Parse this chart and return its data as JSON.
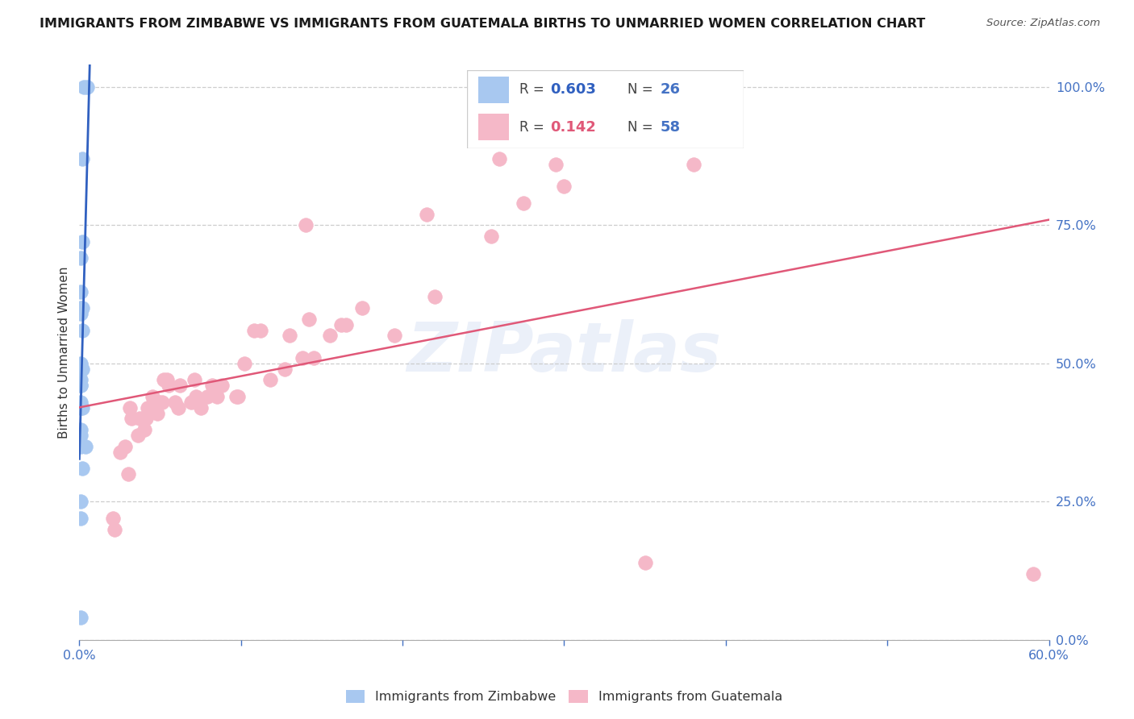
{
  "title": "IMMIGRANTS FROM ZIMBABWE VS IMMIGRANTS FROM GUATEMALA BIRTHS TO UNMARRIED WOMEN CORRELATION CHART",
  "source": "Source: ZipAtlas.com",
  "ylabel": "Births to Unmarried Women",
  "watermark": "ZIPatlas",
  "zimbabwe_R": 0.603,
  "zimbabwe_N": 26,
  "guatemala_R": 0.142,
  "guatemala_N": 58,
  "zimbabwe_color": "#a8c8f0",
  "guatemala_color": "#f5b8c8",
  "trendline_zimbabwe_color": "#3060c0",
  "trendline_guatemala_color": "#e05878",
  "axis_tick_color": "#4472c4",
  "legend_box_color": "#b8b8b8",
  "xlim": [
    0.0,
    0.6
  ],
  "ylim": [
    0.0,
    1.04
  ],
  "xtick_positions": [
    0.0,
    0.1,
    0.2,
    0.3,
    0.4,
    0.5,
    0.6
  ],
  "ytick_positions": [
    0.0,
    0.25,
    0.5,
    0.75,
    1.0
  ],
  "zimbabwe_x": [
    0.003,
    0.005,
    0.002,
    0.002,
    0.001,
    0.001,
    0.001,
    0.002,
    0.001,
    0.002,
    0.001,
    0.002,
    0.001,
    0.001,
    0.001,
    0.001,
    0.001,
    0.002,
    0.001,
    0.001,
    0.004,
    0.001,
    0.002,
    0.001,
    0.001,
    0.001
  ],
  "zimbabwe_y": [
    1.0,
    1.0,
    0.87,
    0.72,
    0.69,
    0.63,
    0.6,
    0.6,
    0.59,
    0.56,
    0.5,
    0.49,
    0.47,
    0.46,
    0.46,
    0.43,
    0.42,
    0.42,
    0.38,
    0.37,
    0.35,
    0.35,
    0.31,
    0.25,
    0.22,
    0.04
  ],
  "guatemala_x": [
    0.35,
    0.295,
    0.3,
    0.275,
    0.255,
    0.215,
    0.22,
    0.195,
    0.175,
    0.165,
    0.162,
    0.155,
    0.145,
    0.138,
    0.142,
    0.127,
    0.13,
    0.118,
    0.108,
    0.112,
    0.098,
    0.102,
    0.097,
    0.088,
    0.085,
    0.079,
    0.082,
    0.075,
    0.069,
    0.072,
    0.071,
    0.059,
    0.062,
    0.061,
    0.052,
    0.054,
    0.049,
    0.048,
    0.051,
    0.055,
    0.045,
    0.041,
    0.039,
    0.04,
    0.037,
    0.036,
    0.042,
    0.031,
    0.032,
    0.028,
    0.025,
    0.03,
    0.021,
    0.022,
    0.59,
    0.14,
    0.38,
    0.26
  ],
  "guatemala_y": [
    0.14,
    0.86,
    0.82,
    0.79,
    0.73,
    0.77,
    0.62,
    0.55,
    0.6,
    0.57,
    0.57,
    0.55,
    0.51,
    0.51,
    0.58,
    0.49,
    0.55,
    0.47,
    0.56,
    0.56,
    0.44,
    0.5,
    0.44,
    0.46,
    0.44,
    0.44,
    0.46,
    0.42,
    0.43,
    0.44,
    0.47,
    0.43,
    0.46,
    0.42,
    0.47,
    0.47,
    0.43,
    0.41,
    0.43,
    0.46,
    0.44,
    0.4,
    0.4,
    0.38,
    0.4,
    0.37,
    0.42,
    0.42,
    0.4,
    0.35,
    0.34,
    0.3,
    0.22,
    0.2,
    0.12,
    0.75,
    0.86,
    0.87
  ]
}
